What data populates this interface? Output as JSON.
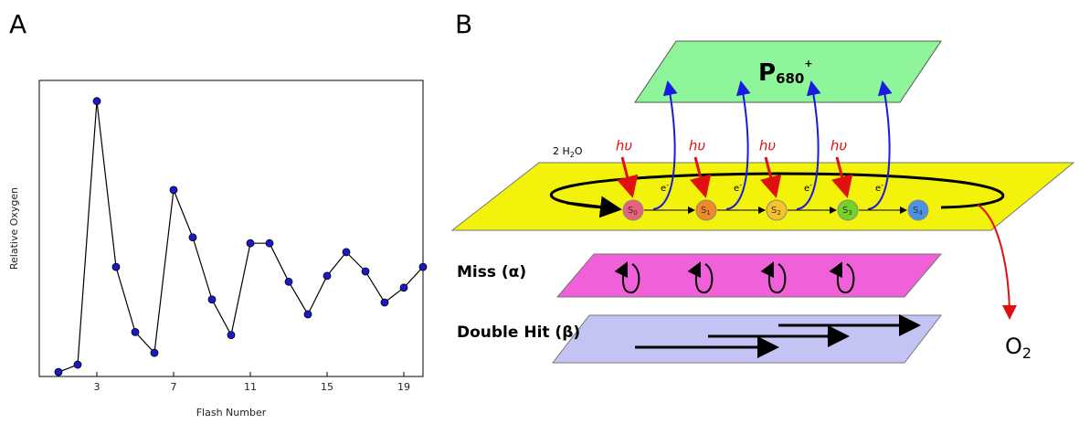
{
  "panels": {
    "a": "A",
    "b": "B"
  },
  "chart_data": {
    "type": "line",
    "x_label": "Flash Number",
    "y_label": "Relative Oxygen",
    "x": [
      1,
      2,
      3,
      4,
      5,
      6,
      7,
      8,
      9,
      10,
      11,
      12,
      13,
      14,
      15,
      16,
      17,
      18,
      19,
      20
    ],
    "values": [
      1.5,
      4,
      93,
      37,
      15,
      8,
      63,
      47,
      26,
      14,
      45,
      45,
      32,
      21,
      34,
      42,
      35.5,
      25,
      30,
      37
    ],
    "color": "#1a1acc",
    "line_color": "#000000",
    "xlim": [
      0,
      20
    ],
    "ylim": [
      0,
      100
    ],
    "xticks": [
      3,
      7,
      11,
      15,
      19
    ]
  },
  "diagram": {
    "p680": {
      "base": "P",
      "sub": "680",
      "sup": "+"
    },
    "water": {
      "base": "2 H",
      "sub": "2",
      "rest": "O"
    },
    "photons": [
      "hυ",
      "hυ",
      "hυ",
      "hυ"
    ],
    "electrons": [
      {
        "base": "e",
        "sup": "-"
      },
      {
        "base": "e",
        "sup": "-"
      },
      {
        "base": "e",
        "sup": "-"
      },
      {
        "base": "e",
        "sup": "-"
      }
    ],
    "states": [
      {
        "base": "S",
        "sub": "0"
      },
      {
        "base": "S",
        "sub": "1"
      },
      {
        "base": "S",
        "sub": "2"
      },
      {
        "base": "S",
        "sub": "3"
      },
      {
        "base": "S",
        "sub": "4"
      }
    ],
    "miss": "Miss (α)",
    "double_hit": "Double Hit (β)",
    "oxygen": {
      "base": "O",
      "sub": "2"
    }
  }
}
